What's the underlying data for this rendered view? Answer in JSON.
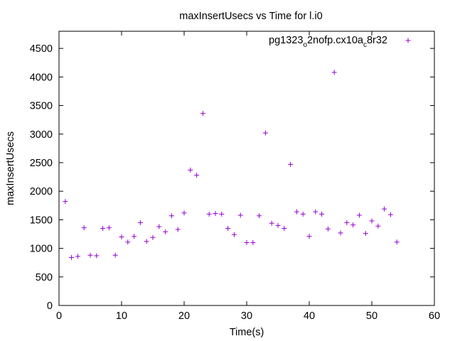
{
  "chart_data": {
    "type": "scatter",
    "title": "maxInsertUsecs vs Time for l.i0",
    "xlabel": "Time(s)",
    "ylabel": "maxInsertUsecs",
    "xlim": [
      0,
      60
    ],
    "ylim": [
      0,
      4800
    ],
    "x_ticks": [
      0,
      10,
      20,
      30,
      40,
      50,
      60
    ],
    "y_ticks": [
      0,
      500,
      1000,
      1500,
      2000,
      2500,
      3000,
      3500,
      4000,
      4500
    ],
    "grid": false,
    "legend_position": "top-right",
    "marker": "+",
    "color": "#9400d3",
    "series": [
      {
        "name": "pg1323_o2nofp.cx10a_c8r32",
        "name_parts": {
          "a": "pg1323",
          "b": "o",
          "c": "2nofp.cx10a",
          "d": "c",
          "e": "8r32"
        },
        "points": [
          [
            1,
            1820
          ],
          [
            2,
            840
          ],
          [
            3,
            860
          ],
          [
            4,
            1360
          ],
          [
            5,
            880
          ],
          [
            6,
            870
          ],
          [
            7,
            1350
          ],
          [
            8,
            1360
          ],
          [
            9,
            880
          ],
          [
            10,
            1200
          ],
          [
            11,
            1110
          ],
          [
            12,
            1210
          ],
          [
            13,
            1450
          ],
          [
            14,
            1120
          ],
          [
            15,
            1190
          ],
          [
            16,
            1380
          ],
          [
            17,
            1290
          ],
          [
            18,
            1570
          ],
          [
            19,
            1330
          ],
          [
            20,
            1620
          ],
          [
            21,
            2370
          ],
          [
            22,
            2280
          ],
          [
            23,
            3360
          ],
          [
            24,
            1600
          ],
          [
            25,
            1610
          ],
          [
            26,
            1600
          ],
          [
            27,
            1350
          ],
          [
            28,
            1240
          ],
          [
            29,
            1580
          ],
          [
            30,
            1100
          ],
          [
            31,
            1100
          ],
          [
            32,
            1570
          ],
          [
            33,
            3020
          ],
          [
            34,
            1440
          ],
          [
            35,
            1400
          ],
          [
            36,
            1350
          ],
          [
            37,
            2470
          ],
          [
            38,
            1640
          ],
          [
            39,
            1600
          ],
          [
            40,
            1210
          ],
          [
            41,
            1640
          ],
          [
            42,
            1600
          ],
          [
            43,
            1340
          ],
          [
            44,
            4080
          ],
          [
            45,
            1270
          ],
          [
            46,
            1450
          ],
          [
            47,
            1410
          ],
          [
            48,
            1580
          ],
          [
            49,
            1260
          ],
          [
            50,
            1480
          ],
          [
            51,
            1390
          ],
          [
            52,
            1690
          ],
          [
            53,
            1590
          ],
          [
            54,
            1110
          ]
        ]
      }
    ]
  }
}
